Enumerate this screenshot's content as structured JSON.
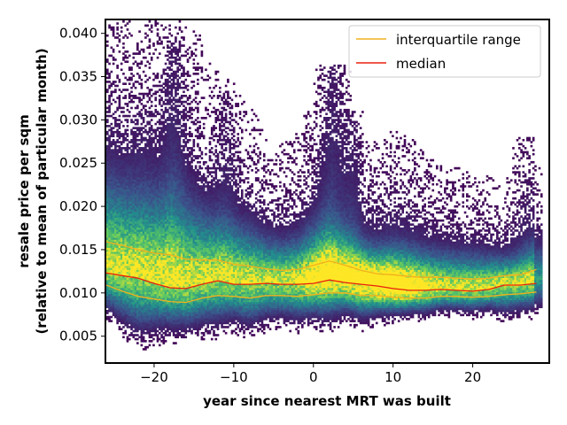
{
  "chart_data": {
    "type": "heatmap",
    "title": "",
    "xlabel": "year since nearest MRT was built",
    "ylabel_lines": [
      "resale price per sqm",
      "(relative to mean of particular month)"
    ],
    "xlim": [
      -26,
      29.5
    ],
    "ylim": [
      0.002,
      0.0415
    ],
    "x_ticks": [
      -20,
      -10,
      0,
      10,
      20
    ],
    "x_tick_labels": [
      "−20",
      "−10",
      "0",
      "10",
      "20"
    ],
    "y_ticks": [
      0.005,
      0.01,
      0.015,
      0.02,
      0.025,
      0.03,
      0.035,
      0.04
    ],
    "y_tick_labels": [
      "0.005",
      "0.010",
      "0.015",
      "0.020",
      "0.025",
      "0.030",
      "0.035",
      "0.040"
    ],
    "grid": false,
    "legend_position": "top-right",
    "colormap": [
      "#440154",
      "#3b528b",
      "#21908d",
      "#5dc962",
      "#fde725"
    ],
    "series": [
      {
        "name": "interquartile range",
        "color": "#f2b01e",
        "lines": [
          {
            "part": "upper",
            "x": [
              -26,
              -24,
              -22,
              -20,
              -18,
              -16,
              -14,
              -12,
              -10,
              -8,
              -6,
              -4,
              -2,
              0,
              2,
              4,
              6,
              8,
              10,
              12,
              14,
              16,
              18,
              20,
              22,
              24,
              26,
              28
            ],
            "y": [
              0.0159,
              0.0155,
              0.015,
              0.0146,
              0.0144,
              0.0139,
              0.0138,
              0.0138,
              0.0133,
              0.0131,
              0.0128,
              0.0126,
              0.0127,
              0.0132,
              0.0137,
              0.0132,
              0.0126,
              0.0122,
              0.0121,
              0.0119,
              0.0118,
              0.0118,
              0.0117,
              0.0116,
              0.0117,
              0.012,
              0.0121,
              0.0127
            ]
          },
          {
            "part": "lower",
            "x": [
              -26,
              -24,
              -22,
              -20,
              -18,
              -16,
              -14,
              -12,
              -10,
              -8,
              -6,
              -4,
              -2,
              0,
              2,
              4,
              6,
              8,
              10,
              12,
              14,
              16,
              18,
              20,
              22,
              24,
              26,
              28
            ],
            "y": [
              0.0109,
              0.0102,
              0.0096,
              0.0093,
              0.009,
              0.0089,
              0.0094,
              0.0097,
              0.0096,
              0.0094,
              0.0097,
              0.0097,
              0.0096,
              0.0098,
              0.01,
              0.01,
              0.0097,
              0.0097,
              0.0095,
              0.0094,
              0.0094,
              0.0096,
              0.0096,
              0.0095,
              0.0096,
              0.0098,
              0.0099,
              0.0101
            ]
          }
        ]
      },
      {
        "name": "median",
        "color": "#e8200c",
        "lines": [
          {
            "part": "median",
            "x": [
              -26,
              -24,
              -22,
              -20,
              -18,
              -16,
              -14,
              -12,
              -10,
              -8,
              -6,
              -4,
              -2,
              0,
              2,
              4,
              6,
              8,
              10,
              12,
              14,
              16,
              18,
              20,
              22,
              24,
              26,
              28
            ],
            "y": [
              0.0123,
              0.012,
              0.0117,
              0.0111,
              0.0106,
              0.0105,
              0.011,
              0.0114,
              0.011,
              0.011,
              0.0111,
              0.011,
              0.011,
              0.0111,
              0.0115,
              0.0112,
              0.011,
              0.0108,
              0.0105,
              0.0103,
              0.0103,
              0.0104,
              0.0103,
              0.0102,
              0.0104,
              0.0109,
              0.0109,
              0.0111
            ]
          }
        ]
      }
    ]
  }
}
